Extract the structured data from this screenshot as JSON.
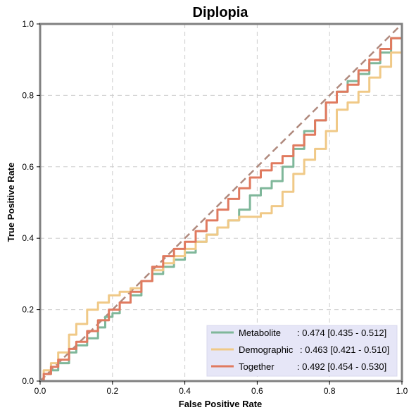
{
  "chart_data": {
    "type": "line",
    "title": "Diplopia",
    "xlabel": "False Positive Rate",
    "ylabel": "True Positive Rate",
    "xlim": [
      0,
      1
    ],
    "ylim": [
      0,
      1
    ],
    "x_ticks": [
      "0.0",
      "0.2",
      "0.4",
      "0.6",
      "0.8",
      "1.0"
    ],
    "y_ticks": [
      "0.0",
      "0.2",
      "0.4",
      "0.6",
      "0.8",
      "1.0"
    ],
    "grid": true,
    "legend_position": "bottom-right",
    "diagonal": {
      "color": "#b08a7e",
      "style": "dashed"
    },
    "series": [
      {
        "name": "Metabolite",
        "legend_name": "Metabolite",
        "legend_value": ": 0.474 [0.435 - 0.512]",
        "color": "#7fb79a",
        "points": [
          [
            0,
            0
          ],
          [
            0.01,
            0.02
          ],
          [
            0.03,
            0.03
          ],
          [
            0.05,
            0.05
          ],
          [
            0.08,
            0.08
          ],
          [
            0.1,
            0.1
          ],
          [
            0.13,
            0.12
          ],
          [
            0.16,
            0.15
          ],
          [
            0.18,
            0.18
          ],
          [
            0.2,
            0.19
          ],
          [
            0.22,
            0.22
          ],
          [
            0.25,
            0.24
          ],
          [
            0.28,
            0.28
          ],
          [
            0.31,
            0.3
          ],
          [
            0.34,
            0.32
          ],
          [
            0.37,
            0.34
          ],
          [
            0.4,
            0.36
          ],
          [
            0.43,
            0.39
          ],
          [
            0.46,
            0.41
          ],
          [
            0.49,
            0.43
          ],
          [
            0.52,
            0.45
          ],
          [
            0.55,
            0.48
          ],
          [
            0.58,
            0.52
          ],
          [
            0.61,
            0.54
          ],
          [
            0.64,
            0.56
          ],
          [
            0.67,
            0.6
          ],
          [
            0.7,
            0.65
          ],
          [
            0.73,
            0.7
          ],
          [
            0.76,
            0.73
          ],
          [
            0.79,
            0.78
          ],
          [
            0.82,
            0.81
          ],
          [
            0.85,
            0.84
          ],
          [
            0.88,
            0.86
          ],
          [
            0.91,
            0.89
          ],
          [
            0.94,
            0.92
          ],
          [
            0.97,
            0.96
          ],
          [
            1,
            1
          ]
        ]
      },
      {
        "name": "Demographic",
        "legend_name": "Demographic",
        "legend_value": ": 0.463 [0.421 - 0.510]",
        "color": "#f0c987",
        "points": [
          [
            0,
            0
          ],
          [
            0.01,
            0.03
          ],
          [
            0.03,
            0.05
          ],
          [
            0.05,
            0.08
          ],
          [
            0.08,
            0.13
          ],
          [
            0.1,
            0.16
          ],
          [
            0.13,
            0.2
          ],
          [
            0.16,
            0.22
          ],
          [
            0.19,
            0.24
          ],
          [
            0.22,
            0.25
          ],
          [
            0.25,
            0.26
          ],
          [
            0.28,
            0.28
          ],
          [
            0.31,
            0.31
          ],
          [
            0.34,
            0.33
          ],
          [
            0.37,
            0.35
          ],
          [
            0.4,
            0.37
          ],
          [
            0.43,
            0.39
          ],
          [
            0.46,
            0.41
          ],
          [
            0.49,
            0.43
          ],
          [
            0.52,
            0.45
          ],
          [
            0.55,
            0.46
          ],
          [
            0.58,
            0.46
          ],
          [
            0.61,
            0.47
          ],
          [
            0.64,
            0.49
          ],
          [
            0.67,
            0.53
          ],
          [
            0.7,
            0.58
          ],
          [
            0.73,
            0.62
          ],
          [
            0.76,
            0.65
          ],
          [
            0.79,
            0.7
          ],
          [
            0.82,
            0.76
          ],
          [
            0.85,
            0.78
          ],
          [
            0.88,
            0.81
          ],
          [
            0.91,
            0.85
          ],
          [
            0.94,
            0.88
          ],
          [
            0.97,
            0.92
          ],
          [
            1,
            0.98
          ]
        ]
      },
      {
        "name": "Together",
        "legend_name": "Together",
        "legend_value": ": 0.492 [0.454 - 0.530]",
        "color": "#e07a5f",
        "points": [
          [
            0,
            0
          ],
          [
            0.01,
            0.02
          ],
          [
            0.03,
            0.04
          ],
          [
            0.05,
            0.06
          ],
          [
            0.08,
            0.09
          ],
          [
            0.1,
            0.11
          ],
          [
            0.13,
            0.14
          ],
          [
            0.16,
            0.17
          ],
          [
            0.19,
            0.2
          ],
          [
            0.22,
            0.22
          ],
          [
            0.25,
            0.25
          ],
          [
            0.28,
            0.28
          ],
          [
            0.31,
            0.32
          ],
          [
            0.34,
            0.35
          ],
          [
            0.37,
            0.37
          ],
          [
            0.4,
            0.39
          ],
          [
            0.43,
            0.42
          ],
          [
            0.46,
            0.45
          ],
          [
            0.49,
            0.48
          ],
          [
            0.52,
            0.51
          ],
          [
            0.55,
            0.54
          ],
          [
            0.58,
            0.57
          ],
          [
            0.61,
            0.59
          ],
          [
            0.64,
            0.61
          ],
          [
            0.67,
            0.63
          ],
          [
            0.7,
            0.66
          ],
          [
            0.73,
            0.69
          ],
          [
            0.76,
            0.73
          ],
          [
            0.79,
            0.78
          ],
          [
            0.82,
            0.81
          ],
          [
            0.85,
            0.83
          ],
          [
            0.88,
            0.87
          ],
          [
            0.91,
            0.9
          ],
          [
            0.94,
            0.93
          ],
          [
            0.97,
            0.96
          ],
          [
            1,
            1
          ]
        ]
      }
    ]
  }
}
